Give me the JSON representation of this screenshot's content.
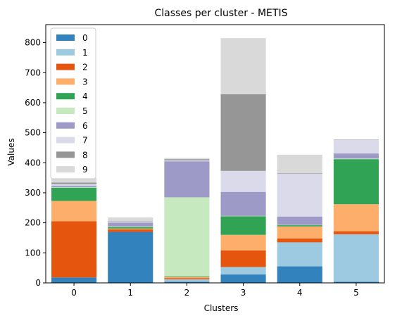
{
  "chart_data": {
    "type": "bar",
    "stacked": true,
    "title": "Classes per cluster - METIS",
    "xlabel": "Clusters",
    "ylabel": "Values",
    "categories": [
      "0",
      "1",
      "2",
      "3",
      "4",
      "5"
    ],
    "ylim": [
      0,
      860
    ],
    "yticks": [
      0,
      100,
      200,
      300,
      400,
      500,
      600,
      700,
      800
    ],
    "grid": false,
    "legend_position": "top-left",
    "series": [
      {
        "name": "0",
        "color": "#3182bd",
        "values": [
          18,
          170,
          4,
          28,
          55,
          4
        ]
      },
      {
        "name": "1",
        "color": "#9ecae1",
        "values": [
          0,
          0,
          8,
          25,
          80,
          158
        ]
      },
      {
        "name": "2",
        "color": "#e6550d",
        "values": [
          187,
          8,
          4,
          55,
          13,
          10
        ]
      },
      {
        "name": "3",
        "color": "#fdae6b",
        "values": [
          68,
          3,
          4,
          52,
          40,
          90
        ]
      },
      {
        "name": "4",
        "color": "#31a354",
        "values": [
          44,
          5,
          2,
          62,
          4,
          150
        ]
      },
      {
        "name": "5",
        "color": "#c7e9c0",
        "values": [
          2,
          2,
          263,
          1,
          1,
          2
        ]
      },
      {
        "name": "6",
        "color": "#9e9ac8",
        "values": [
          5,
          13,
          120,
          80,
          28,
          17
        ]
      },
      {
        "name": "7",
        "color": "#dadaeb",
        "values": [
          5,
          3,
          3,
          70,
          142,
          45
        ]
      },
      {
        "name": "8",
        "color": "#969696",
        "values": [
          5,
          1,
          4,
          255,
          2,
          1
        ]
      },
      {
        "name": "9",
        "color": "#d9d9d9",
        "values": [
          16,
          13,
          4,
          187,
          62,
          1
        ]
      }
    ]
  }
}
